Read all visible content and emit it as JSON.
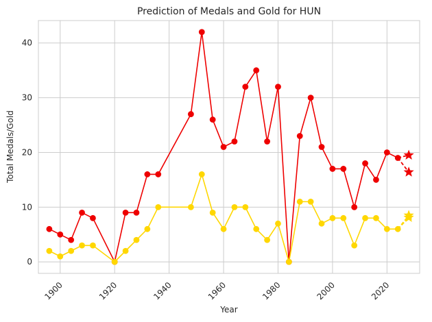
{
  "chart_data": {
    "type": "line",
    "title": "Prediction of Medals and Gold for HUN",
    "xlabel": "Year",
    "ylabel": "Total Medals/Gold",
    "xlim": [
      1892,
      2032
    ],
    "ylim": [
      -2.1,
      44.1
    ],
    "xticks": [
      1900,
      1920,
      1940,
      1960,
      1980,
      2000,
      2020
    ],
    "yticks": [
      0,
      10,
      20,
      30,
      40
    ],
    "grid": true,
    "series": [
      {
        "color": "#ee0000",
        "x": [
          1896,
          1900,
          1904,
          1908,
          1912,
          1920,
          1924,
          1928,
          1932,
          1936,
          1948,
          1952,
          1956,
          1960,
          1964,
          1968,
          1972,
          1976,
          1980,
          1984,
          1988,
          1992,
          1996,
          2000,
          2004,
          2008,
          2012,
          2016,
          2020,
          2024
        ],
        "values": [
          6,
          5,
          4,
          9,
          8,
          0,
          9,
          9,
          16,
          16,
          27,
          42,
          26,
          21,
          22,
          32,
          35,
          22,
          32,
          0,
          23,
          30,
          21,
          17,
          17,
          10,
          18,
          15,
          20,
          19
        ]
      },
      {
        "color": "#ffd700",
        "x": [
          1896,
          1900,
          1904,
          1908,
          1912,
          1920,
          1924,
          1928,
          1932,
          1936,
          1948,
          1952,
          1956,
          1960,
          1964,
          1968,
          1972,
          1976,
          1980,
          1984,
          1988,
          1992,
          1996,
          2000,
          2004,
          2008,
          2012,
          2016,
          2020,
          2024
        ],
        "values": [
          2,
          1,
          2,
          3,
          3,
          0,
          2,
          4,
          6,
          10,
          10,
          16,
          9,
          6,
          10,
          10,
          6,
          4,
          7,
          0,
          11,
          11,
          7,
          8,
          8,
          3,
          8,
          8,
          6,
          6
        ]
      }
    ],
    "predictions": [
      {
        "color": "#ee0000",
        "from": [
          2024,
          19
        ],
        "to": [
          [
            2028,
            19.5
          ],
          [
            2028,
            16.4
          ]
        ]
      },
      {
        "color": "#ffd700",
        "from": [
          2024,
          6
        ],
        "to": [
          [
            2028,
            8.5
          ],
          [
            2028,
            8.1
          ]
        ]
      }
    ]
  }
}
